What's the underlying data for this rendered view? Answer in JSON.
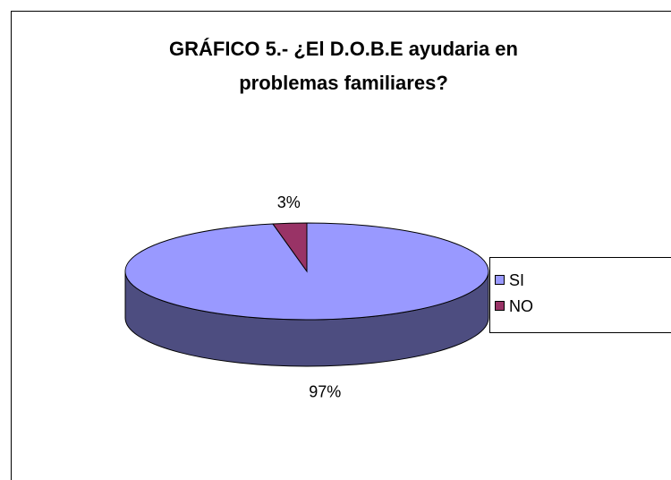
{
  "chart_data": {
    "type": "pie3d",
    "title": "GRÁFICO 5.- ¿El D.O.B.E ayudaria en problemas familiares?",
    "categories": [
      "SI",
      "NO"
    ],
    "values": [
      97,
      3
    ],
    "value_labels": [
      "97%",
      "3%"
    ],
    "colors": [
      "#9999ff",
      "#993366"
    ],
    "legend": "right"
  }
}
